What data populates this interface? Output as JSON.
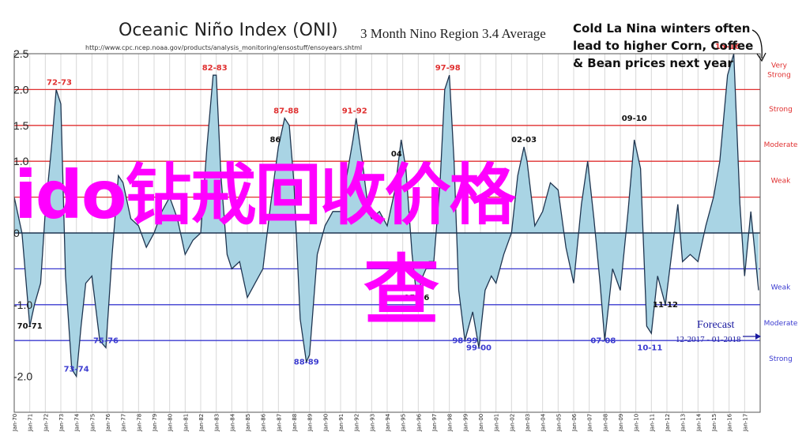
{
  "chart_data": {
    "type": "area",
    "title": "Oceanic Niño Index (ONI)",
    "subtitle": "3 Month Nino Region 3.4 Average",
    "source_url": "http://www.cpc.ncep.noaa.gov/products/analysis_monitoring/ensostuff/ensoyears.shtml",
    "y_ticks": [
      "2.5",
      "2.0",
      "1.5",
      "1.0",
      "0",
      "-1.0",
      "-2.0"
    ],
    "ylim": [
      -2.5,
      2.5
    ],
    "xlim": [
      1970,
      2018
    ],
    "x_ticks": [
      "Jan-70",
      "Jan-71",
      "Jan-72",
      "Jan-73",
      "Jan-74",
      "Jan-75",
      "Jan-76",
      "Jan-77",
      "Jan-78",
      "Jan-79",
      "Jan-80",
      "Jan-81",
      "Jan-82",
      "Jan-83",
      "Jan-84",
      "Jan-85",
      "Jan-86",
      "Jan-87",
      "Jan-88",
      "Jan-89",
      "Jan-90",
      "Jan-91",
      "Jan-92",
      "Jan-93",
      "Jan-94",
      "Jan-95",
      "Jan-96",
      "Jan-97",
      "Jan-98",
      "Jan-99",
      "Jan-00",
      "Jan-01",
      "Jan-02",
      "Jan-03",
      "Jan-04",
      "Jan-05",
      "Jan-06",
      "Jan-07",
      "Jan-08",
      "Jan-09",
      "Jan-10",
      "Jan-11",
      "Jan-12",
      "Jan-13",
      "Jan-14",
      "Jan-15",
      "Jan-16",
      "Jan-17"
    ],
    "thresholds": [
      {
        "value": 2.0,
        "label": "Very Strong",
        "color": "#e03030"
      },
      {
        "value": 1.5,
        "label": "Strong",
        "color": "#e03030"
      },
      {
        "value": 1.0,
        "label": "Moderate",
        "color": "#e03030"
      },
      {
        "value": 0.5,
        "label": "Weak",
        "color": "#e03030"
      },
      {
        "value": -0.5,
        "label": "Weak",
        "color": "#3b3bd0"
      },
      {
        "value": -1.0,
        "label": "Moderate",
        "color": "#3b3bd0"
      },
      {
        "value": -1.5,
        "label": "Strong",
        "color": "#3b3bd0"
      }
    ],
    "series": [
      {
        "fill": "#a9d4e4",
        "stroke": "#1f3550",
        "x": [
          1970.0,
          1970.5,
          1971.0,
          1971.3,
          1971.7,
          1972.0,
          1972.4,
          1972.7,
          1973.0,
          1973.3,
          1973.7,
          1974.0,
          1974.3,
          1974.6,
          1975.0,
          1975.5,
          1975.9,
          1976.3,
          1976.7,
          1977.0,
          1977.5,
          1978.0,
          1978.5,
          1979.0,
          1979.5,
          1980.0,
          1980.5,
          1981.0,
          1981.5,
          1982.0,
          1982.4,
          1982.8,
          1983.0,
          1983.3,
          1983.7,
          1984.0,
          1984.5,
          1985.0,
          1985.5,
          1986.0,
          1986.5,
          1987.0,
          1987.4,
          1987.7,
          1988.0,
          1988.4,
          1988.8,
          1989.0,
          1989.5,
          1990.0,
          1990.5,
          1991.0,
          1991.4,
          1991.8,
          1992.0,
          1992.4,
          1992.8,
          1993.0,
          1993.5,
          1994.0,
          1994.5,
          1994.9,
          1995.2,
          1995.6,
          1995.9,
          1996.3,
          1996.7,
          1997.0,
          1997.4,
          1997.7,
          1998.0,
          1998.3,
          1998.6,
          1999.0,
          1999.5,
          1999.9,
          2000.3,
          2000.7,
          2001.0,
          2001.5,
          2002.0,
          2002.4,
          2002.8,
          2003.0,
          2003.5,
          2004.0,
          2004.5,
          2005.0,
          2005.5,
          2006.0,
          2006.5,
          2006.9,
          2007.3,
          2007.7,
          2008.0,
          2008.5,
          2009.0,
          2009.5,
          2009.9,
          2010.3,
          2010.7,
          2011.0,
          2011.4,
          2011.9,
          2012.3,
          2012.7,
          2013.0,
          2013.5,
          2014.0,
          2014.5,
          2015.0,
          2015.4,
          2015.9,
          2016.3,
          2016.7,
          2017.0,
          2017.4,
          2017.9
        ],
        "values": [
          0.5,
          0.0,
          -1.3,
          -1.0,
          -0.7,
          0.3,
          1.2,
          2.0,
          1.8,
          -0.6,
          -1.9,
          -2.0,
          -1.3,
          -0.7,
          -0.6,
          -1.5,
          -1.6,
          -0.3,
          0.8,
          0.7,
          0.2,
          0.1,
          -0.2,
          0.0,
          0.3,
          0.5,
          0.2,
          -0.3,
          -0.1,
          0.0,
          1.2,
          2.2,
          2.2,
          0.8,
          -0.3,
          -0.5,
          -0.4,
          -0.9,
          -0.7,
          -0.5,
          0.4,
          1.2,
          1.6,
          1.5,
          0.7,
          -1.2,
          -1.8,
          -1.7,
          -0.3,
          0.1,
          0.3,
          0.3,
          0.8,
          1.3,
          1.6,
          1.0,
          0.3,
          0.2,
          0.3,
          0.1,
          0.6,
          1.3,
          0.9,
          -0.3,
          -0.9,
          -0.6,
          -0.4,
          -0.4,
          0.7,
          2.0,
          2.2,
          1.0,
          -0.8,
          -1.5,
          -1.1,
          -1.6,
          -0.8,
          -0.6,
          -0.7,
          -0.3,
          0.0,
          0.8,
          1.2,
          1.0,
          0.1,
          0.3,
          0.7,
          0.6,
          -0.2,
          -0.7,
          0.4,
          1.0,
          0.2,
          -0.7,
          -1.5,
          -0.5,
          -0.8,
          0.3,
          1.3,
          0.9,
          -1.3,
          -1.4,
          -0.6,
          -1.0,
          -0.3,
          0.4,
          -0.4,
          -0.3,
          -0.4,
          0.1,
          0.5,
          1.0,
          2.2,
          2.5,
          0.4,
          -0.6,
          0.3,
          -0.8
        ]
      }
    ],
    "annotations": [
      {
        "text": "72-73",
        "x": 1972.9,
        "y": 2.0,
        "color": "#e03030"
      },
      {
        "text": "82-83",
        "x": 1982.9,
        "y": 2.2,
        "color": "#e03030"
      },
      {
        "text": "87-88",
        "x": 1987.5,
        "y": 1.6,
        "color": "#e03030"
      },
      {
        "text": "91-92",
        "x": 1991.9,
        "y": 1.6,
        "color": "#e03030"
      },
      {
        "text": "97-98",
        "x": 1997.9,
        "y": 2.2,
        "color": "#e03030"
      },
      {
        "text": "15-16",
        "x": 2015.9,
        "y": 2.5,
        "color": "#e03030"
      },
      {
        "text": "86",
        "x": 1986.8,
        "y": 1.2,
        "color": "#111111"
      },
      {
        "text": "04",
        "x": 1994.6,
        "y": 1.0,
        "color": "#111111"
      },
      {
        "text": "02-03",
        "x": 2002.8,
        "y": 1.2,
        "color": "#111111"
      },
      {
        "text": "09-10",
        "x": 2009.9,
        "y": 1.5,
        "color": "#111111"
      },
      {
        "text": "70-71",
        "x": 1971.0,
        "y": -1.4,
        "color": "#111111"
      },
      {
        "text": "73-74",
        "x": 1974.0,
        "y": -2.0,
        "color": "#3b3bd0"
      },
      {
        "text": "75-76",
        "x": 1975.9,
        "y": -1.6,
        "color": "#3b3bd0"
      },
      {
        "text": "88-89",
        "x": 1988.8,
        "y": -1.9,
        "color": "#3b3bd0"
      },
      {
        "text": "95-96",
        "x": 1995.9,
        "y": -1.0,
        "color": "#111111"
      },
      {
        "text": "98-99",
        "x": 1999.0,
        "y": -1.6,
        "color": "#3b3bd0"
      },
      {
        "text": "99-00",
        "x": 1999.9,
        "y": -1.7,
        "color": "#3b3bd0"
      },
      {
        "text": "07-08",
        "x": 2007.9,
        "y": -1.6,
        "color": "#3b3bd0"
      },
      {
        "text": "10-11",
        "x": 2010.9,
        "y": -1.7,
        "color": "#3b3bd0"
      },
      {
        "text": "11-12",
        "x": 2011.9,
        "y": -1.1,
        "color": "#111111"
      }
    ]
  },
  "callout": {
    "line1": "Cold La Nina winters often",
    "line2": "lead to higher Corn, Coffee",
    "line3": "& Bean prices next year"
  },
  "forecast": {
    "label": "Forecast",
    "dates": "12-2017 - 01-2018"
  },
  "overlay": {
    "line1": "ido钻戒回收价格",
    "line2": "查"
  }
}
